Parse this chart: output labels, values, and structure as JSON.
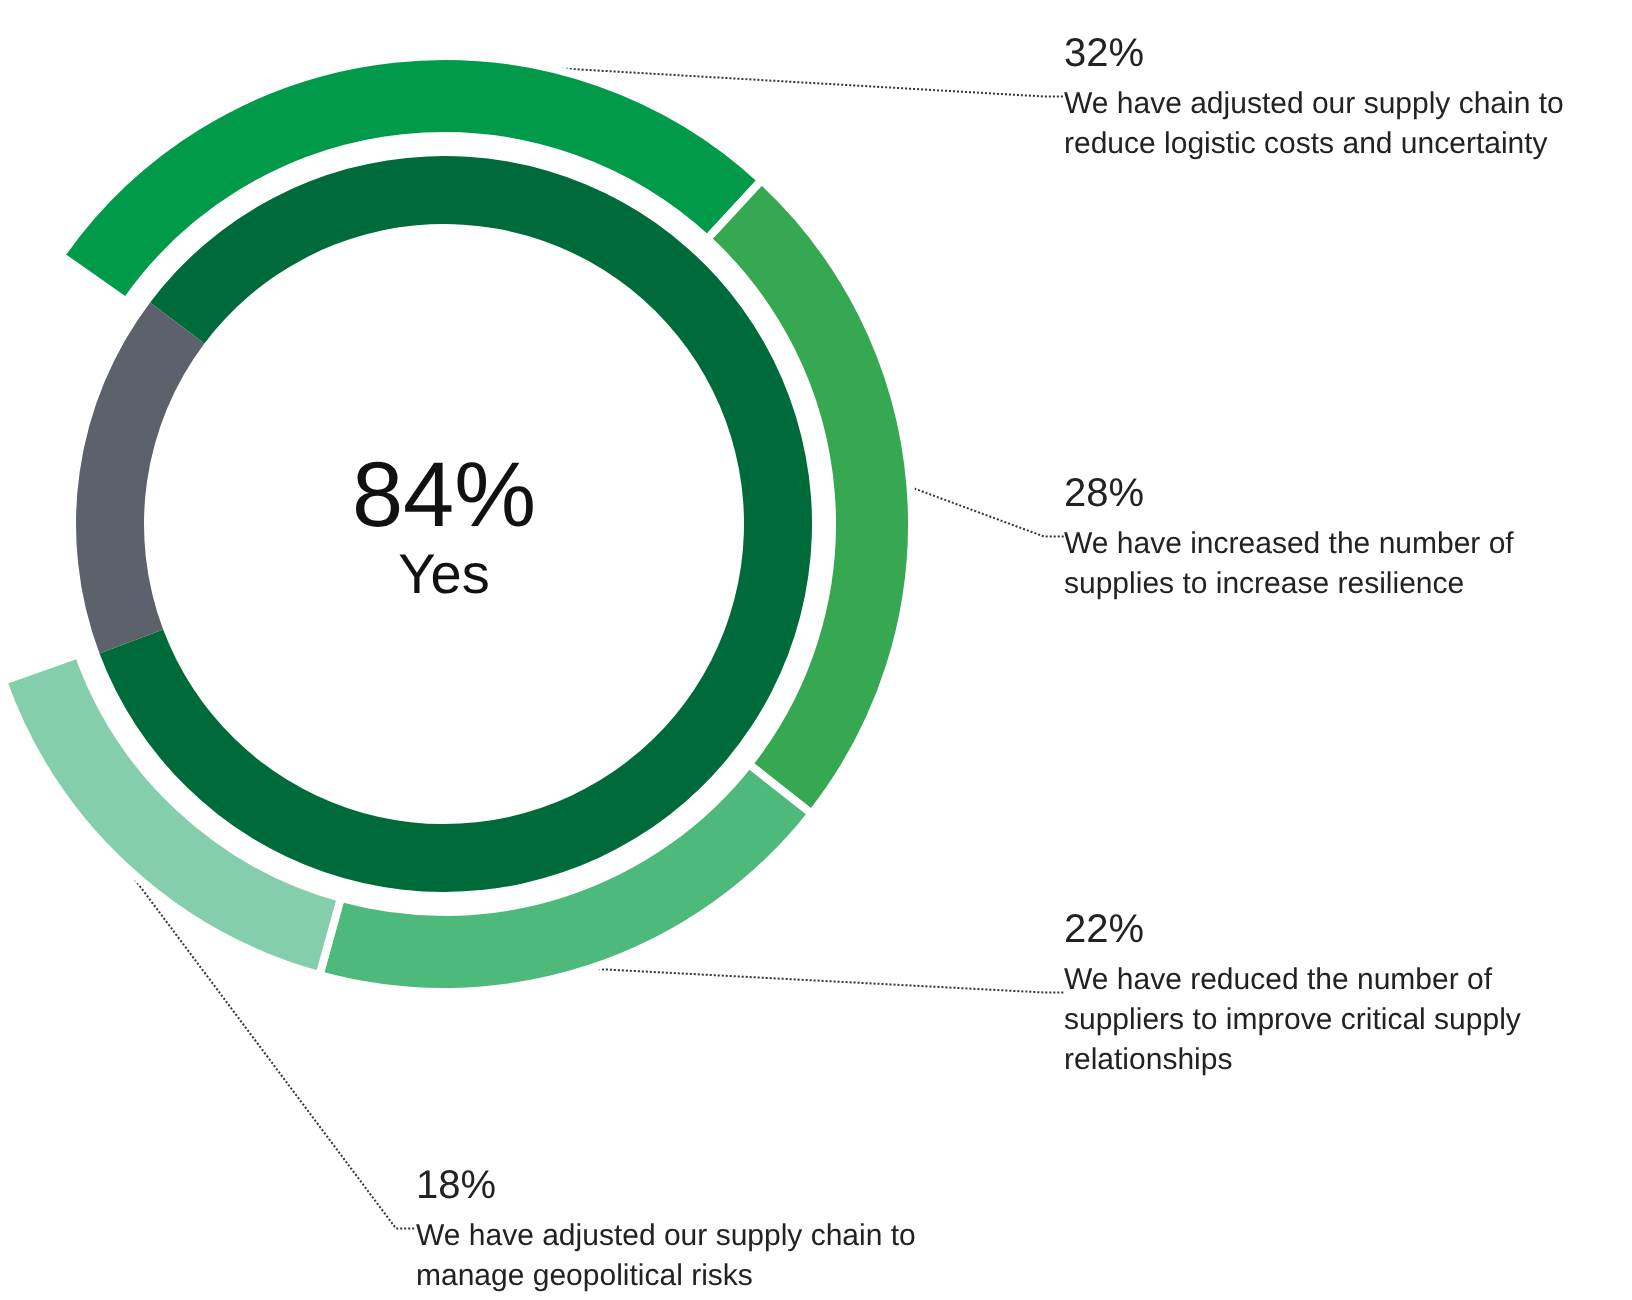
{
  "chart_data": [
    {
      "type": "donut",
      "categories": [
        "Yes",
        null
      ],
      "values": [
        84,
        16
      ],
      "colors": [
        "#006b3a",
        "#5c616b"
      ],
      "value_labels": [
        "84%",
        null
      ]
    },
    {
      "type": "donut",
      "categories": [
        "We have adjusted our supply chain to reduce logistic costs and uncertainty",
        "We have increased the number of supplies to increase resilience",
        "We have reduced the number of suppliers to improve critical supply relationships",
        "We have adjusted our supply chain to manage geopolitical risks"
      ],
      "values": [
        32,
        28,
        22,
        18
      ],
      "colors": [
        "#009a4a",
        "#36a852",
        "#4dba7b",
        "#84ceab"
      ],
      "value_labels": [
        "32%",
        "28%",
        "22%",
        "18%"
      ]
    }
  ]
}
